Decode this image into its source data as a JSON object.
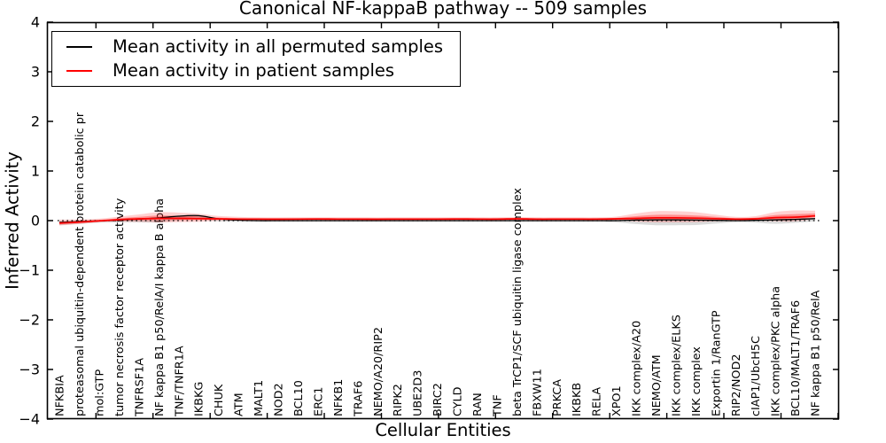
{
  "title": "Canonical NF-kappaB pathway -- 509 samples",
  "legend": {
    "items": [
      {
        "label": "Mean activity in all permuted samples",
        "color": "#000000"
      },
      {
        "label": "Mean activity in patient samples",
        "color": "#ff0000"
      }
    ]
  },
  "chart_data": {
    "type": "line",
    "title": "Canonical NF-kappaB pathway -- 509 samples",
    "xlabel": "Cellular Entities",
    "ylabel": "Inferred Activity",
    "ylim": [
      -4,
      4
    ],
    "ytick_values": [
      4,
      3,
      2,
      1,
      0,
      -1,
      -2,
      -3,
      -4
    ],
    "ytick_labels": [
      "4",
      "3",
      "2",
      "1",
      "0",
      "−1",
      "−2",
      "−3",
      "−4"
    ],
    "zero_line": {
      "value": 0,
      "style": "dotted",
      "color": "#000000"
    },
    "legend_position": "upper left",
    "grid": false,
    "categories": [
      "NFKBIA",
      "proteasomal ubiquitin-dependent protein catabolic pr",
      "mol:GTP",
      "tumor necrosis factor receptor activity",
      "TNFRSF1A",
      "NF kappa B1 p50/RelA/I kappa B alpha",
      "TNF/TNFR1A",
      "IKBKG",
      "CHUK",
      "ATM",
      "MALT1",
      "NOD2",
      "BCL10",
      "ERC1",
      "NFKB1",
      "TRAF6",
      "NEMO/A20/RIP2",
      "RIPK2",
      "UBE2D3",
      "BIRC2",
      "CYLD",
      "RAN",
      "TNF",
      "beta TrCP1/SCF ubiquitin ligase complex",
      "FBXW11",
      "PRKCA",
      "IKBKB",
      "RELA",
      "XPO1",
      "IKK complex/A20",
      "NEMO/ATM",
      "IKK complex/ELKS",
      "IKK complex",
      "Exportin 1/RanGTP",
      "RIP2/NOD2",
      "cIAP1/UbcH5C",
      "IKK complex/PKC alpha",
      "BCL10/MALT1/TRAF6",
      "NF kappa B1 p50/RelA"
    ],
    "series": [
      {
        "name": "Mean activity in all permuted samples",
        "color": "#000000",
        "values": [
          -0.035,
          -0.02,
          -0.005,
          0.01,
          0.03,
          0.055,
          0.09,
          0.1,
          0.035,
          0.01,
          0,
          0,
          0,
          0,
          0,
          0,
          0,
          0,
          0,
          0,
          0,
          0,
          0,
          0,
          0,
          0,
          0,
          0,
          0,
          0.01,
          0.015,
          0.015,
          0.01,
          0.005,
          0,
          0.005,
          0.015,
          0.025,
          0.04
        ]
      },
      {
        "name": "Mean activity in patient samples",
        "color": "#ff0000",
        "values": [
          -0.05,
          -0.03,
          -0.005,
          0.02,
          0.035,
          0.045,
          0.045,
          0.04,
          0.035,
          0.03,
          0.03,
          0.028,
          0.03,
          0.032,
          0.03,
          0.03,
          0.028,
          0.03,
          0.03,
          0.03,
          0.032,
          0.03,
          0.03,
          0.035,
          0.03,
          0.03,
          0.03,
          0.03,
          0.035,
          0.045,
          0.055,
          0.055,
          0.05,
          0.04,
          0.03,
          0.035,
          0.06,
          0.07,
          0.095
        ]
      }
    ],
    "bands": {
      "patient_band_color": "#ff0000",
      "permuted_band_color": "#888888",
      "red_upper": [
        0.07,
        0.055,
        0.045,
        0.06,
        0.09,
        0.125,
        0.115,
        0.1,
        0.06,
        0.045,
        0.036,
        0.036,
        0.036,
        0.036,
        0.036,
        0.036,
        0.036,
        0.036,
        0.036,
        0.036,
        0.036,
        0.036,
        0.036,
        0.036,
        0.036,
        0.036,
        0.036,
        0.036,
        0.045,
        0.1,
        0.135,
        0.135,
        0.12,
        0.08,
        0.045,
        0.055,
        0.115,
        0.135,
        0.105
      ],
      "red_lower": [
        0.05,
        0.04,
        0.03,
        0.04,
        0.06,
        0.08,
        0.075,
        0.065,
        0.04,
        0.03,
        0.025,
        0.025,
        0.025,
        0.025,
        0.025,
        0.025,
        0.025,
        0.025,
        0.025,
        0.025,
        0.025,
        0.025,
        0.025,
        0.025,
        0.025,
        0.025,
        0.025,
        0.025,
        0.03,
        0.065,
        0.09,
        0.09,
        0.08,
        0.055,
        0.03,
        0.035,
        0.075,
        0.085,
        0.065
      ],
      "gray_upper": 0.012,
      "gray_lower": [
        0.055,
        0.045,
        0.035,
        0.045,
        0.065,
        0.09,
        0.085,
        0.07,
        0.05,
        0.035,
        0.027,
        0.027,
        0.027,
        0.027,
        0.027,
        0.027,
        0.027,
        0.027,
        0.027,
        0.027,
        0.027,
        0.027,
        0.027,
        0.027,
        0.027,
        0.027,
        0.027,
        0.027,
        0.035,
        0.08,
        0.107,
        0.107,
        0.1,
        0.065,
        0.035,
        0.045,
        0.08,
        0.07,
        0.055
      ]
    }
  }
}
